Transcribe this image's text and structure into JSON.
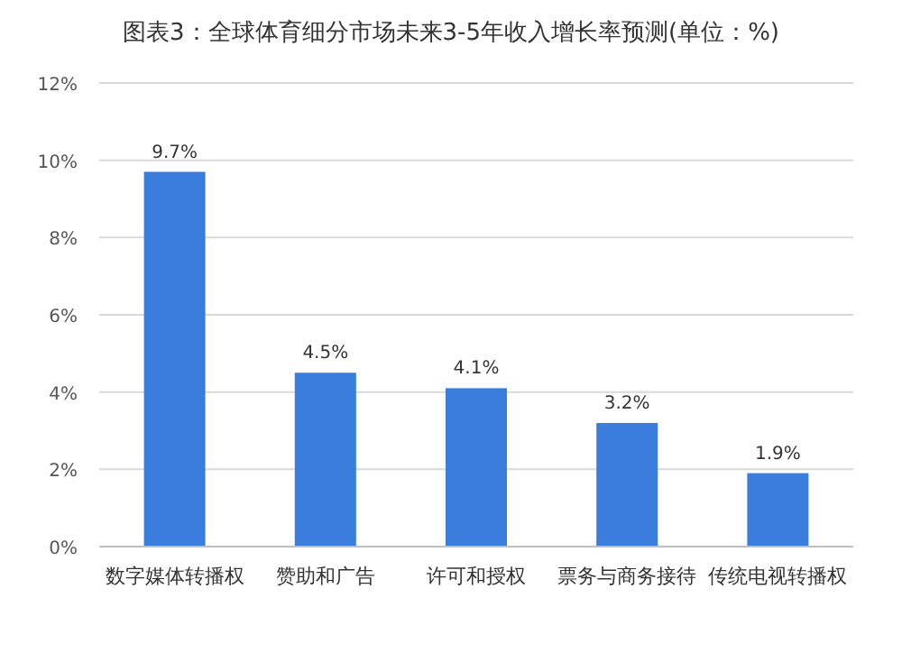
{
  "chart_data": {
    "type": "bar",
    "title": "图表3：全球体育细分市场未来3-5年收入增长率预测(单位：%)",
    "categories": [
      "数字媒体转播权",
      "赞助和广告",
      "许可和授权",
      "票务与商务接待",
      "传统电视转播权"
    ],
    "values": [
      9.7,
      4.5,
      4.1,
      3.2,
      1.9
    ],
    "color": "#3b7ddd",
    "value_labels": [
      "9.7%",
      "4.5%",
      "4.1%",
      "3.2%",
      "1.9%"
    ],
    "ylim": [
      0,
      12
    ],
    "yticks": [
      {
        "value": 0,
        "label": "0%"
      },
      {
        "value": 2,
        "label": "2%"
      },
      {
        "value": 4,
        "label": "4%"
      },
      {
        "value": 6,
        "label": "6%"
      },
      {
        "value": 8,
        "label": "8%"
      },
      {
        "value": 10,
        "label": "10%"
      },
      {
        "value": 12,
        "label": "12%"
      }
    ],
    "grid": "y"
  }
}
